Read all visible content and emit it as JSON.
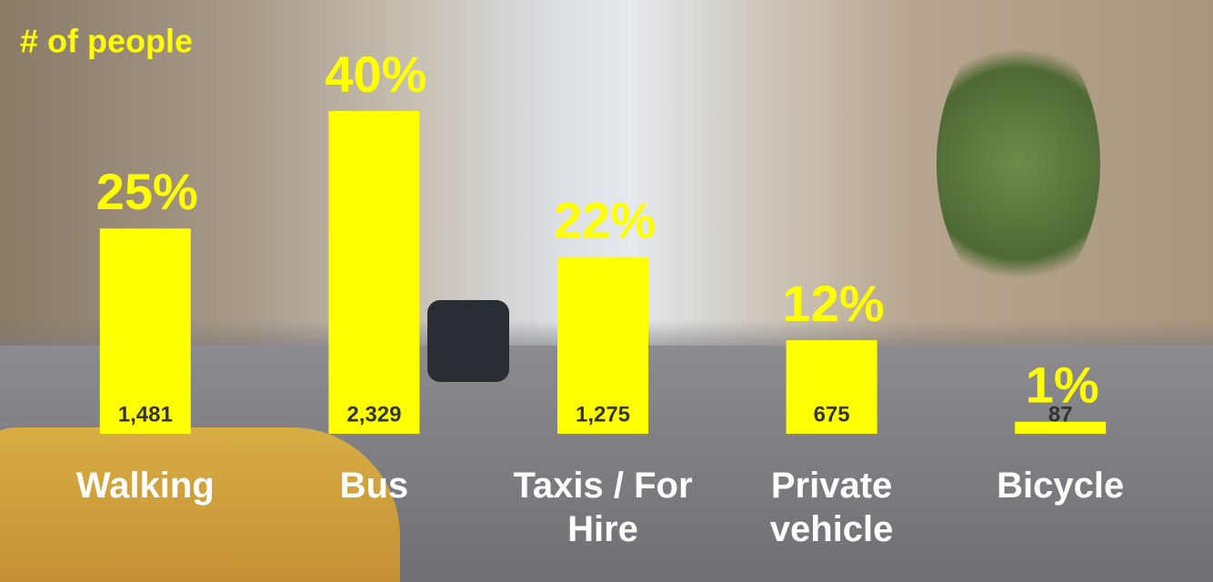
{
  "chart_data": {
    "type": "bar",
    "title": "# of people",
    "categories": [
      "Walking",
      "Bus",
      "Taxis / For Hire",
      "Private vehicle",
      "Bicycle"
    ],
    "values": [
      1481,
      2329,
      1275,
      675,
      87
    ],
    "value_labels": [
      "1,481",
      "2,329",
      "1,275",
      "675",
      "87"
    ],
    "shares": [
      25,
      40,
      22,
      12,
      1
    ],
    "share_labels": [
      "25%",
      "40%",
      "22%",
      "12%",
      "1%"
    ],
    "color": "#ffff00",
    "ylim": [
      0,
      2500
    ]
  }
}
